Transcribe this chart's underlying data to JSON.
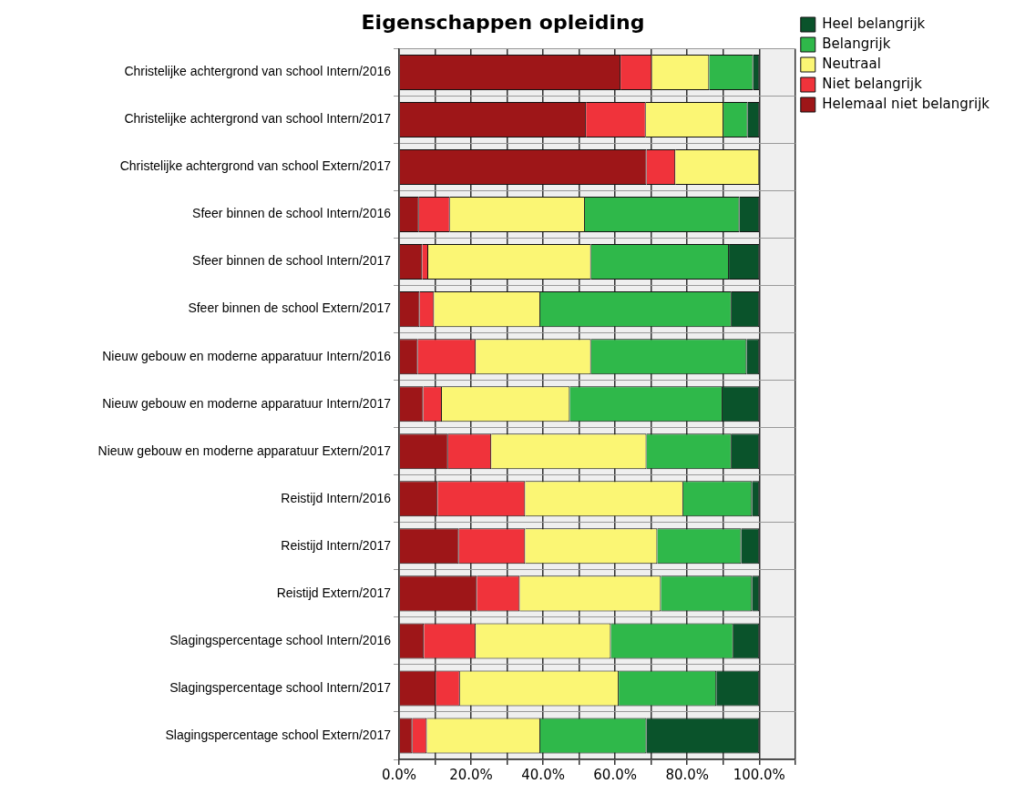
{
  "chart_data": {
    "type": "bar",
    "title": "Eigenschappen opleiding",
    "orientation": "horizontal",
    "stacked": true,
    "categories": [
      "Christelijke achtergrond van school Intern/2016",
      "Christelijke achtergrond van school Intern/2017",
      "Christelijke achtergrond van school Extern/2017",
      "Sfeer binnen de school Intern/2016",
      "Sfeer binnen de school Intern/2017",
      "Sfeer binnen de school Extern/2017",
      "Nieuw gebouw en moderne apparatuur Intern/2016",
      "Nieuw gebouw en moderne apparatuur Intern/2017",
      "Nieuw gebouw en moderne apparatuur Extern/2017",
      "Reistijd Intern/2016",
      "Reistijd Intern/2017",
      "Reistijd Extern/2017",
      "Slagingspercentage school Intern/2016",
      "Slagingspercentage school Intern/2017",
      "Slagingspercentage school Extern/2017"
    ],
    "series": [
      {
        "name": "Helemaal niet belangrijk",
        "color": "#9e1618",
        "values": [
          61.5,
          51.9,
          68.7,
          5.5,
          6.4,
          5.7,
          5.2,
          6.7,
          13.6,
          10.7,
          16.6,
          21.6,
          6.9,
          10.2,
          3.7
        ]
      },
      {
        "name": "Niet belangrijk",
        "color": "#f0333b",
        "values": [
          8.7,
          16.6,
          8.0,
          8.6,
          1.7,
          4.0,
          16.1,
          5.2,
          12.0,
          24.3,
          18.4,
          11.9,
          14.4,
          6.7,
          4.0
        ]
      },
      {
        "name": "Neutraal",
        "color": "#fbf674",
        "values": [
          15.9,
          21.6,
          23.3,
          37.5,
          45.2,
          29.5,
          32.0,
          35.5,
          43.1,
          43.9,
          36.7,
          39.2,
          37.5,
          44.1,
          31.5
        ]
      },
      {
        "name": "Belangrijk",
        "color": "#2fb84a",
        "values": [
          12.2,
          6.7,
          null,
          42.9,
          38.3,
          53.1,
          43.2,
          42.4,
          23.6,
          19.1,
          23.3,
          25.3,
          34.0,
          27.1,
          29.5
        ]
      },
      {
        "name": "Heel belangrijk",
        "color": "#0a532b",
        "values": [
          1.7,
          3.2,
          null,
          5.5,
          8.4,
          7.7,
          3.5,
          10.2,
          7.7,
          2.0,
          5.0,
          2.0,
          7.2,
          11.9,
          31.3
        ]
      }
    ],
    "xlim": [
      0,
      110
    ],
    "xticks": [
      {
        "value": 0,
        "label": "0.0%"
      },
      {
        "value": 10,
        "label": null
      },
      {
        "value": 20,
        "label": "20.0%"
      },
      {
        "value": 30,
        "label": null
      },
      {
        "value": 40,
        "label": "40.0%"
      },
      {
        "value": 50,
        "label": null
      },
      {
        "value": 60,
        "label": "60.0%"
      },
      {
        "value": 70,
        "label": null
      },
      {
        "value": 80,
        "label": "80.0%"
      },
      {
        "value": 90,
        "label": null
      },
      {
        "value": 100,
        "label": "100.0%"
      },
      {
        "value": 110,
        "label": null
      }
    ],
    "grid": true,
    "legend": "top right"
  }
}
